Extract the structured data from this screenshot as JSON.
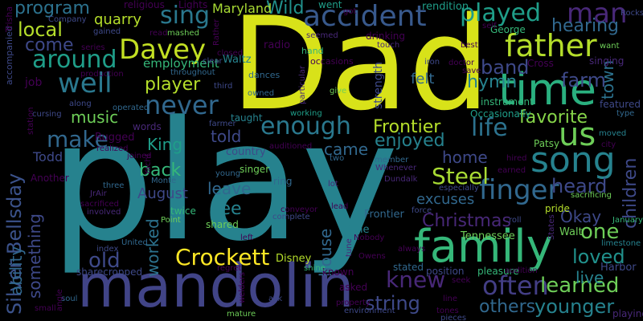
{
  "background": "#000000",
  "palette": [
    "#440154",
    "#482878",
    "#3e4989",
    "#31688e",
    "#26828e",
    "#1f9e89",
    "#35b779",
    "#6ece58",
    "#b5de2b",
    "#fde725"
  ],
  "words": [
    {
      "text": "play",
      "weight": 1.0,
      "color": "#26828e"
    },
    {
      "text": "Dad",
      "weight": 0.86,
      "color": "#d8e219"
    },
    {
      "text": "mandolin",
      "weight": 0.55,
      "color": "#414487"
    },
    {
      "text": "family",
      "weight": 0.47,
      "color": "#35b779"
    },
    {
      "text": "time",
      "weight": 0.4,
      "color": "#2ab07f"
    },
    {
      "text": "song",
      "weight": 0.34,
      "color": "#26828e"
    },
    {
      "text": "father",
      "weight": 0.3,
      "color": "#b5de2b"
    },
    {
      "text": "accident",
      "weight": 0.28,
      "color": "#38598c"
    },
    {
      "text": "finger",
      "weight": 0.28,
      "color": "#31688e"
    },
    {
      "text": "Davey",
      "weight": 0.28,
      "color": "#c2df23"
    },
    {
      "text": "well",
      "weight": 0.27,
      "color": "#2a788e"
    },
    {
      "text": "us",
      "weight": 0.27,
      "color": "#6ece58"
    },
    {
      "text": "man",
      "weight": 0.25,
      "color": "#482878"
    },
    {
      "text": "played",
      "weight": 0.24,
      "color": "#1f9e89"
    },
    {
      "text": "never",
      "weight": 0.24,
      "color": "#31688e"
    },
    {
      "text": "life",
      "weight": 0.23,
      "color": "#2c728e"
    },
    {
      "text": "knew",
      "weight": 0.23,
      "color": "#482878"
    },
    {
      "text": "often",
      "weight": 0.23,
      "color": "#433e85"
    },
    {
      "text": "old",
      "weight": 0.22,
      "color": "#3e4989"
    },
    {
      "text": "enough",
      "weight": 0.22,
      "color": "#2a788e"
    },
    {
      "text": "sing",
      "weight": 0.21,
      "color": "#2a788e"
    },
    {
      "text": "around",
      "weight": 0.21,
      "color": "#1f9e89"
    },
    {
      "text": "make",
      "weight": 0.21,
      "color": "#31688e"
    },
    {
      "text": "Crockett",
      "weight": 0.21,
      "color": "#fde725"
    },
    {
      "text": "Silver Bellsday",
      "weight": 0.2,
      "color": "#3b528b"
    },
    {
      "text": "Steel",
      "weight": 0.2,
      "color": "#a8db34"
    },
    {
      "text": "learned",
      "weight": 0.2,
      "color": "#6ece58"
    },
    {
      "text": "one",
      "weight": 0.2,
      "color": "#6ece58"
    },
    {
      "text": "loved",
      "weight": 0.18,
      "color": "#21918c"
    },
    {
      "text": "younger",
      "weight": 0.18,
      "color": "#26828e"
    },
    {
      "text": "string",
      "weight": 0.18,
      "color": "#3e4989"
    },
    {
      "text": "heard",
      "weight": 0.18,
      "color": "#3e4989"
    },
    {
      "text": "local",
      "weight": 0.18,
      "color": "#b5de2b"
    },
    {
      "text": "band",
      "weight": 0.18,
      "color": "#3e4989"
    },
    {
      "text": "farm",
      "weight": 0.18,
      "color": "#3e4989"
    },
    {
      "text": "hearing",
      "weight": 0.17,
      "color": "#31688e"
    },
    {
      "text": "favorite",
      "weight": 0.17,
      "color": "#86d549"
    },
    {
      "text": "player",
      "weight": 0.17,
      "color": "#b5de2b"
    },
    {
      "text": "Christmas",
      "weight": 0.17,
      "color": "#482878"
    },
    {
      "text": "children",
      "weight": 0.17,
      "color": "#3e4989"
    },
    {
      "text": "program",
      "weight": 0.16,
      "color": "#2c728e"
    },
    {
      "text": "Frontier",
      "weight": 0.16,
      "color": "#b5de2b"
    },
    {
      "text": "hymn",
      "weight": 0.16,
      "color": "#26828e"
    },
    {
      "text": "Wild",
      "weight": 0.16,
      "color": "#21918c"
    },
    {
      "text": "come",
      "weight": 0.15,
      "color": "#3e4989"
    },
    {
      "text": "enjoyed",
      "weight": 0.15,
      "color": "#26828e"
    },
    {
      "text": "back",
      "weight": 0.15,
      "color": "#35b779"
    },
    {
      "text": "see",
      "weight": 0.15,
      "color": "#26828e"
    },
    {
      "text": "others",
      "weight": 0.15,
      "color": "#31688e"
    },
    {
      "text": "something",
      "weight": 0.14,
      "color": "#3e4989"
    },
    {
      "text": "King",
      "weight": 0.14,
      "color": "#1f9e89"
    },
    {
      "text": "music",
      "weight": 0.14,
      "color": "#6ece58"
    },
    {
      "text": "leave",
      "weight": 0.14,
      "color": "#31688e"
    },
    {
      "text": "home",
      "weight": 0.14,
      "color": "#3e4989"
    },
    {
      "text": "told",
      "weight": 0.14,
      "color": "#3e4989"
    },
    {
      "text": "came",
      "weight": 0.14,
      "color": "#31688e"
    },
    {
      "text": "worked",
      "weight": 0.14,
      "color": "#2c728e"
    },
    {
      "text": "house",
      "weight": 0.14,
      "color": "#31688e"
    },
    {
      "text": "town",
      "weight": 0.14,
      "color": "#2c728e"
    },
    {
      "text": "ability",
      "weight": 0.13,
      "color": "#31688e"
    },
    {
      "text": "live",
      "weight": 0.13,
      "color": "#26828e"
    },
    {
      "text": "Okay",
      "weight": 0.13,
      "color": "#3e4989"
    },
    {
      "text": "quarry",
      "weight": 0.12,
      "color": "#b5de2b"
    },
    {
      "text": "August",
      "weight": 0.12,
      "color": "#3e4989"
    },
    {
      "text": "felt",
      "weight": 0.12,
      "color": "#31688e"
    },
    {
      "text": "excuses",
      "weight": 0.11,
      "color": "#31688e"
    },
    {
      "text": "Maryland",
      "weight": 0.11,
      "color": "#a8db34"
    },
    {
      "text": "Todd",
      "weight": 0.11,
      "color": "#3e4989"
    },
    {
      "text": "employment",
      "weight": 0.11,
      "color": "#35b779"
    },
    {
      "text": "strength",
      "weight": 0.11,
      "color": "#3e4989"
    },
    {
      "text": "rendition",
      "weight": 0.1,
      "color": "#1f9e89"
    },
    {
      "text": "Rugged",
      "weight": 0.1,
      "color": "#440154"
    },
    {
      "text": "job",
      "weight": 0.1,
      "color": "#440154"
    },
    {
      "text": "radio",
      "weight": 0.1,
      "color": "#440154"
    },
    {
      "text": "country",
      "weight": 0.1,
      "color": "#3e4989"
    },
    {
      "text": "Cline",
      "weight": 0.09,
      "color": "#26828e"
    },
    {
      "text": "Tennessee",
      "weight": 0.09,
      "color": "#6ece58"
    },
    {
      "text": "Walt",
      "weight": 0.09,
      "color": "#6ece58"
    },
    {
      "text": "Harbor",
      "weight": 0.09,
      "color": "#3e4989"
    },
    {
      "text": "Disney",
      "weight": 0.09,
      "color": "#b5de2b"
    },
    {
      "text": "sharecropped",
      "weight": 0.09,
      "color": "#3e4989"
    },
    {
      "text": "Frontier",
      "weight": 0.09,
      "color": "#31688e"
    },
    {
      "text": "Waltz",
      "weight": 0.09,
      "color": "#26828e"
    },
    {
      "text": "religious",
      "weight": 0.09,
      "color": "#440154"
    },
    {
      "text": "Lights",
      "weight": 0.09,
      "color": "#440154"
    },
    {
      "text": "went",
      "weight": 0.09,
      "color": "#1f9e89"
    },
    {
      "text": "drinking",
      "weight": 0.09,
      "color": "#440154"
    },
    {
      "text": "taught",
      "weight": 0.09,
      "color": "#26828e"
    },
    {
      "text": "singer",
      "weight": 0.09,
      "color": "#6ece58"
    },
    {
      "text": "ring",
      "weight": 0.09,
      "color": "#31688e"
    },
    {
      "text": "words",
      "weight": 0.09,
      "color": "#482878"
    },
    {
      "text": "shared",
      "weight": 0.09,
      "color": "#6ece58"
    },
    {
      "text": "twice",
      "weight": 0.09,
      "color": "#35b779"
    },
    {
      "text": "Another",
      "weight": 0.09,
      "color": "#440154"
    },
    {
      "text": "known",
      "weight": 0.09,
      "color": "#440154"
    },
    {
      "text": "asked",
      "weight": 0.09,
      "color": "#440154"
    },
    {
      "text": "instrument",
      "weight": 0.08,
      "color": "#35b779"
    },
    {
      "text": "singing",
      "weight": 0.08,
      "color": "#482878"
    },
    {
      "text": "featured",
      "weight": 0.08,
      "color": "#3e4989"
    },
    {
      "text": "Patsy",
      "weight": 0.08,
      "color": "#6ece58"
    },
    {
      "text": "position",
      "weight": 0.08,
      "color": "#3e4989"
    },
    {
      "text": "pleasure",
      "weight": 0.08,
      "color": "#35b779"
    },
    {
      "text": "stated",
      "weight": 0.08,
      "color": "#31688e"
    },
    {
      "text": "Occasionally",
      "weight": 0.08,
      "color": "#1f9e89"
    },
    {
      "text": "pride",
      "weight": 0.08,
      "color": "#b5de2b"
    },
    {
      "text": "Cross",
      "weight": 0.08,
      "color": "#440154"
    },
    {
      "text": "George",
      "weight": 0.08,
      "color": "#35b779"
    },
    {
      "text": "playing",
      "weight": 0.08,
      "color": "#482878"
    },
    {
      "text": "Company",
      "weight": 0.07,
      "color": "#3e4989"
    },
    {
      "text": "occasions",
      "weight": 0.07,
      "color": "#440154"
    },
    {
      "text": "dances",
      "weight": 0.07,
      "color": "#31688e"
    },
    {
      "text": "hand",
      "weight": 0.07,
      "color": "#35b779"
    },
    {
      "text": "mashed",
      "weight": 0.07,
      "color": "#6ece58"
    },
    {
      "text": "read",
      "weight": 0.07,
      "color": "#440154"
    },
    {
      "text": "closed",
      "weight": 0.07,
      "color": "#440154"
    },
    {
      "text": "clear",
      "weight": 0.07,
      "color": "#3e4989"
    },
    {
      "text": "throughout",
      "weight": 0.07,
      "color": "#31688e"
    },
    {
      "text": "give",
      "weight": 0.07,
      "color": "#6ece58"
    },
    {
      "text": "touch",
      "weight": 0.07,
      "color": "#482878"
    },
    {
      "text": "iron",
      "weight": 0.07,
      "color": "#3e4989"
    },
    {
      "text": "save",
      "weight": 0.07,
      "color": "#440154"
    },
    {
      "text": "doctor",
      "weight": 0.07,
      "color": "#440154"
    },
    {
      "text": "best",
      "weight": 0.07,
      "color": "#440154"
    },
    {
      "text": "self",
      "weight": 0.07,
      "color": "#440154"
    },
    {
      "text": "want",
      "weight": 0.07,
      "color": "#6ece58"
    },
    {
      "text": "Rocks",
      "weight": 0.07,
      "color": "#3e4989"
    },
    {
      "text": "limestone",
      "weight": 0.07,
      "color": "#26828e"
    },
    {
      "text": "January",
      "weight": 0.07,
      "color": "#35b779"
    },
    {
      "text": "moved",
      "weight": 0.07,
      "color": "#26828e"
    },
    {
      "text": "city",
      "weight": 0.07,
      "color": "#440154"
    },
    {
      "text": "type",
      "weight": 0.07,
      "color": "#31688e"
    },
    {
      "text": "sacrificing",
      "weight": 0.07,
      "color": "#6ece58"
    },
    {
      "text": "hired",
      "weight": 0.07,
      "color": "#440154"
    },
    {
      "text": "earned",
      "weight": 0.07,
      "color": "#440154"
    },
    {
      "text": "roll",
      "weight": 0.07,
      "color": "#3e4989"
    },
    {
      "text": "force",
      "weight": 0.07,
      "color": "#3e4989"
    },
    {
      "text": "lot",
      "weight": 0.07,
      "color": "#482878"
    },
    {
      "text": "lead",
      "weight": 0.07,
      "color": "#440154"
    },
    {
      "text": "always",
      "weight": 0.07,
      "color": "#440154"
    },
    {
      "text": "Dundalk",
      "weight": 0.07,
      "color": "#482878"
    },
    {
      "text": "Whenever",
      "weight": 0.07,
      "color": "#482878"
    },
    {
      "text": "member",
      "weight": 0.07,
      "color": "#31688e"
    },
    {
      "text": "especially",
      "weight": 0.07,
      "color": "#3e4989"
    },
    {
      "text": "conveyor",
      "weight": 0.07,
      "color": "#440154"
    },
    {
      "text": "complete",
      "weight": 0.07,
      "color": "#3e4989"
    },
    {
      "text": "Monte",
      "weight": 0.07,
      "color": "#31688e"
    },
    {
      "text": "young",
      "weight": 0.07,
      "color": "#31688e"
    },
    {
      "text": "JrAir",
      "weight": 0.07,
      "color": "#482878"
    },
    {
      "text": "three",
      "weight": 0.07,
      "color": "#31688e"
    },
    {
      "text": "sacrificed",
      "weight": 0.07,
      "color": "#440154"
    },
    {
      "text": "involved",
      "weight": 0.07,
      "color": "#482878"
    },
    {
      "text": "Point",
      "weight": 0.07,
      "color": "#6ece58"
    },
    {
      "text": "United",
      "weight": 0.07,
      "color": "#31688e"
    },
    {
      "text": "index",
      "weight": 0.07,
      "color": "#3e4989"
    },
    {
      "text": "regret",
      "weight": 0.07,
      "color": "#440154"
    },
    {
      "text": "shine",
      "weight": 0.07,
      "color": "#35b779"
    },
    {
      "text": "mature",
      "weight": 0.07,
      "color": "#6ece58"
    },
    {
      "text": "soul",
      "weight": 0.07,
      "color": "#31688e"
    },
    {
      "text": "ask",
      "weight": 0.07,
      "color": "#3e4989"
    },
    {
      "text": "small",
      "weight": 0.07,
      "color": "#440154"
    },
    {
      "text": "property",
      "weight": 0.07,
      "color": "#440154"
    },
    {
      "text": "environment",
      "weight": 0.07,
      "color": "#3e4989"
    },
    {
      "text": "line",
      "weight": 0.07,
      "color": "#440154"
    },
    {
      "text": "tones",
      "weight": 0.07,
      "color": "#440154"
    },
    {
      "text": "seek",
      "weight": 0.07,
      "color": "#440154"
    },
    {
      "text": "pieces",
      "weight": 0.07,
      "color": "#3e4989"
    },
    {
      "text": "Nobody",
      "weight": 0.07,
      "color": "#440154"
    },
    {
      "text": "tune",
      "weight": 0.07,
      "color": "#482878"
    },
    {
      "text": "Owens",
      "weight": 0.07,
      "color": "#440154"
    },
    {
      "text": "left",
      "weight": 0.07,
      "color": "#440154"
    },
    {
      "text": "cursing",
      "weight": 0.07,
      "color": "#3e4989"
    },
    {
      "text": "operated",
      "weight": 0.07,
      "color": "#31688e"
    },
    {
      "text": "along",
      "weight": 0.07,
      "color": "#3e4989"
    },
    {
      "text": "realized",
      "weight": 0.07,
      "color": "#440154"
    },
    {
      "text": "joined",
      "weight": 0.07,
      "color": "#440154"
    },
    {
      "text": "production",
      "weight": 0.07,
      "color": "#440154"
    },
    {
      "text": "series",
      "weight": 0.07,
      "color": "#440154"
    },
    {
      "text": "gained",
      "weight": 0.07,
      "color": "#3e4989"
    },
    {
      "text": "owned",
      "weight": 0.07,
      "color": "#31688e"
    },
    {
      "text": "working",
      "weight": 0.07,
      "color": "#1f9e89"
    },
    {
      "text": "particular",
      "weight": 0.07,
      "color": "#482878"
    },
    {
      "text": "audition",
      "weight": 0.07,
      "color": "#440154"
    },
    {
      "text": "third",
      "weight": 0.07,
      "color": "#3e4989"
    },
    {
      "text": "seemed",
      "weight": 0.07,
      "color": "#482878"
    },
    {
      "text": "got",
      "weight": 0.07,
      "color": "#440154"
    },
    {
      "text": "farmer",
      "weight": 0.07,
      "color": "#3e4989"
    },
    {
      "text": "auditioned",
      "weight": 0.07,
      "color": "#440154"
    },
    {
      "text": "two",
      "weight": 0.07,
      "color": "#31688e"
    },
    {
      "text": "States",
      "weight": 0.07,
      "color": "#482878"
    },
    {
      "text": "welders",
      "weight": 0.07,
      "color": "#440154"
    },
    {
      "text": "angle",
      "weight": 0.07,
      "color": "#440154"
    },
    {
      "text": "accompanied",
      "weight": 0.07,
      "color": "#3e4989"
    },
    {
      "text": "Trisha",
      "weight": 0.07,
      "color": "#440154"
    },
    {
      "text": "station",
      "weight": 0.07,
      "color": "#440154"
    },
    {
      "text": "Yacht",
      "weight": 0.07,
      "color": "#440154"
    },
    {
      "text": "Rather",
      "weight": 0.07,
      "color": "#440154"
    }
  ]
}
